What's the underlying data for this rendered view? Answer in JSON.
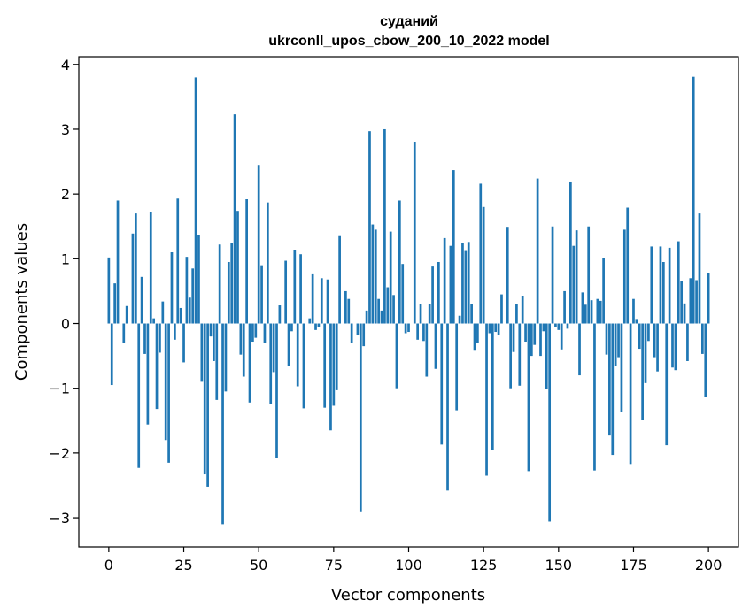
{
  "chart_data": {
    "type": "bar",
    "title_line1": "суданий",
    "title_line2": "ukrconll_upos_cbow_200_10_2022 model",
    "xlabel": "Vector components",
    "ylabel": "Components values",
    "xlim": [
      -10,
      210
    ],
    "ylim": [
      -3.45,
      4.12
    ],
    "xticks": [
      0,
      25,
      50,
      75,
      100,
      125,
      150,
      175,
      200
    ],
    "yticks": [
      -3,
      -2,
      -1,
      0,
      1,
      2,
      3,
      4
    ],
    "ytick_labels": [
      "−3",
      "−2",
      "−1",
      "0",
      "1",
      "2",
      "3",
      "4"
    ],
    "grid": false,
    "bar_color": "#1f77b4",
    "values": [
      1.02,
      -0.95,
      0.62,
      1.9,
      0.0,
      -0.3,
      0.27,
      0.0,
      1.39,
      1.7,
      -2.23,
      0.72,
      -0.47,
      -1.56,
      1.72,
      0.08,
      -1.32,
      -0.45,
      0.34,
      -1.8,
      -2.15,
      1.1,
      -0.25,
      1.93,
      0.24,
      -0.6,
      1.03,
      0.4,
      0.85,
      3.8,
      1.37,
      -0.9,
      -2.33,
      -2.52,
      -0.2,
      -0.58,
      -1.18,
      1.22,
      -3.1,
      -1.05,
      0.95,
      1.25,
      3.23,
      1.74,
      -0.48,
      -0.82,
      1.92,
      -1.22,
      -0.28,
      -0.22,
      2.45,
      0.9,
      -0.3,
      1.87,
      -1.25,
      -0.75,
      -2.08,
      0.28,
      0.0,
      0.97,
      -0.66,
      -0.12,
      1.13,
      -0.97,
      1.07,
      -1.31,
      0.0,
      0.08,
      0.76,
      -0.1,
      -0.06,
      0.7,
      -1.3,
      0.68,
      -1.65,
      -1.27,
      -1.03,
      1.35,
      0.0,
      0.5,
      0.38,
      -0.3,
      0.0,
      -0.18,
      -2.9,
      -0.35,
      0.2,
      2.97,
      1.53,
      1.45,
      0.38,
      0.2,
      3.0,
      0.56,
      1.42,
      0.44,
      -1.0,
      1.9,
      0.92,
      -0.15,
      -0.13,
      0.0,
      2.8,
      -0.25,
      0.3,
      -0.27,
      -0.82,
      0.3,
      0.88,
      -0.7,
      0.95,
      -1.87,
      1.32,
      -2.58,
      1.2,
      2.37,
      -1.34,
      0.12,
      1.25,
      1.12,
      1.26,
      0.3,
      -0.42,
      -0.3,
      2.16,
      1.8,
      -2.35,
      -0.15,
      -1.95,
      -0.13,
      -0.18,
      0.45,
      0.0,
      1.48,
      -1.0,
      -0.44,
      0.3,
      -0.96,
      0.43,
      -0.28,
      -2.28,
      -0.5,
      -0.33,
      2.24,
      -0.5,
      -0.12,
      -1.01,
      -3.06,
      1.5,
      -0.05,
      -0.1,
      -0.4,
      0.5,
      -0.08,
      2.18,
      1.2,
      1.44,
      -0.8,
      0.48,
      0.29,
      1.5,
      0.36,
      -2.27,
      0.38,
      0.35,
      1.01,
      -0.48,
      -1.73,
      -2.03,
      -0.66,
      -0.52,
      -1.37,
      1.45,
      1.79,
      -2.17,
      0.38,
      0.07,
      -0.39,
      -1.49,
      -0.92,
      -0.27,
      1.19,
      -0.52,
      -0.74,
      1.19,
      0.95,
      -1.88,
      1.17,
      -0.68,
      -0.72,
      1.27,
      0.66,
      0.31,
      -0.58,
      0.7,
      3.81,
      0.67,
      1.7,
      -0.47,
      -1.13,
      0.78
    ]
  }
}
